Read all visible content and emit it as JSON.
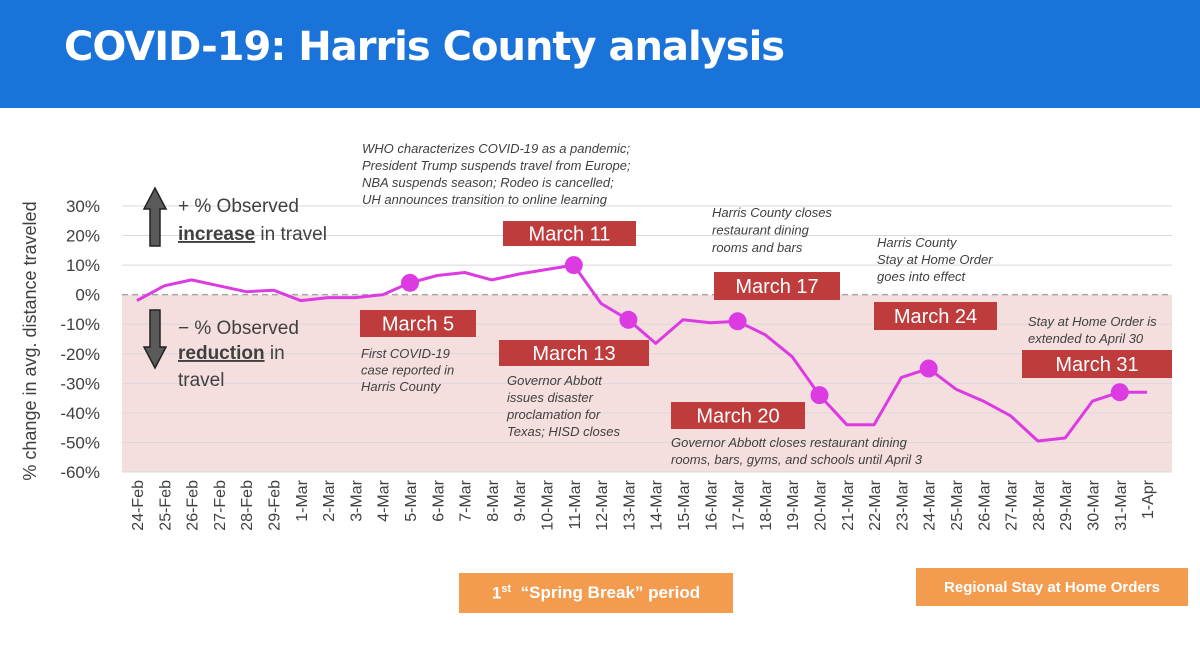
{
  "header": {
    "title": "COVID-19: Harris County analysis"
  },
  "periods": {
    "spring_break_sup": "st",
    "spring_break_num": "1",
    "spring_break_text": "“Spring Break” period",
    "stay_home": "Regional Stay at Home Orders"
  },
  "colors": {
    "banner": "#1a73d9",
    "line": "#dd3be2",
    "negative_band": "#f5dede",
    "date_box": "#bf3c3c",
    "period_box": "#f39b4f"
  },
  "chart_data": {
    "type": "line",
    "ylabel": "% change in avg. distance traveled",
    "ylim": [
      -60,
      30
    ],
    "yticks": [
      30,
      20,
      10,
      0,
      -10,
      -20,
      -30,
      -40,
      -50,
      -60
    ],
    "ytick_labels": [
      "30%",
      "20%",
      "10%",
      "0%",
      "-10%",
      "-20%",
      "-30%",
      "-40%",
      "-50%",
      "-60%"
    ],
    "grid": true,
    "categories": [
      "24-Feb",
      "25-Feb",
      "26-Feb",
      "27-Feb",
      "28-Feb",
      "29-Feb",
      "1-Mar",
      "2-Mar",
      "3-Mar",
      "4-Mar",
      "5-Mar",
      "6-Mar",
      "7-Mar",
      "8-Mar",
      "9-Mar",
      "10-Mar",
      "11-Mar",
      "12-Mar",
      "13-Mar",
      "14-Mar",
      "15-Mar",
      "16-Mar",
      "17-Mar",
      "18-Mar",
      "19-Mar",
      "20-Mar",
      "21-Mar",
      "22-Mar",
      "23-Mar",
      "24-Mar",
      "25-Mar",
      "26-Mar",
      "27-Mar",
      "28-Mar",
      "29-Mar",
      "30-Mar",
      "31-Mar",
      "1-Apr"
    ],
    "series": [
      {
        "values": [
          -2,
          3,
          5,
          3,
          1,
          1.5,
          -2,
          -1,
          -1,
          0,
          4,
          6.5,
          7.5,
          5,
          7,
          8.5,
          10,
          -3,
          -8.5,
          -16.5,
          -8.5,
          -9.5,
          -9,
          -13.5,
          -21,
          -34,
          -44,
          -44,
          -28,
          -25,
          -32,
          -36,
          -41,
          -49.5,
          -48.5,
          -36,
          -33,
          -33
        ]
      }
    ],
    "markers": [
      "5-Mar",
      "11-Mar",
      "13-Mar",
      "17-Mar",
      "20-Mar",
      "24-Mar",
      "31-Mar"
    ],
    "legend": {
      "plus_prefix": "+ % Observed",
      "plus_bold": "increase",
      "plus_suffix": " in travel",
      "minus_prefix": "− % Observed",
      "minus_bold": "reduction",
      "minus_suffix": " in",
      "minus_line3": "travel"
    },
    "annotations": [
      {
        "date_label": "March 5",
        "text": [
          "First COVID-19",
          "case reported in",
          "Harris County"
        ]
      },
      {
        "date_label": "March 11",
        "text": [
          "WHO characterizes COVID-19 as a pandemic;",
          "President Trump suspends travel from Europe;",
          "NBA suspends season; Rodeo is cancelled;",
          "UH announces transition to online learning"
        ]
      },
      {
        "date_label": "March 13",
        "text": [
          "Governor Abbott",
          "issues disaster",
          "proclamation for",
          "Texas; HISD closes"
        ]
      },
      {
        "date_label": "March 17",
        "text": [
          "Harris County closes",
          "restaurant dining",
          "rooms and bars"
        ]
      },
      {
        "date_label": "March 20",
        "text": [
          "Governor Abbott closes restaurant dining",
          "rooms, bars, gyms, and schools until April 3"
        ]
      },
      {
        "date_label": "March 24",
        "text": [
          "Harris County",
          "Stay at Home Order",
          "goes into effect"
        ]
      },
      {
        "date_label": "March 31",
        "text": [
          "Stay at Home Order is",
          "extended to April 30"
        ]
      }
    ]
  }
}
